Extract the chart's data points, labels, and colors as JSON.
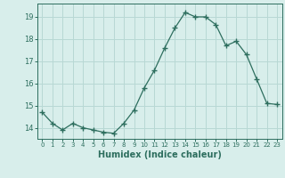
{
  "x": [
    0,
    1,
    2,
    3,
    4,
    5,
    6,
    7,
    8,
    9,
    10,
    11,
    12,
    13,
    14,
    15,
    16,
    17,
    18,
    19,
    20,
    21,
    22,
    23
  ],
  "y": [
    14.7,
    14.2,
    13.9,
    14.2,
    14.0,
    13.9,
    13.8,
    13.75,
    14.2,
    14.8,
    15.8,
    16.6,
    17.6,
    18.5,
    19.2,
    19.0,
    19.0,
    18.65,
    17.7,
    17.9,
    17.3,
    16.2,
    15.1,
    15.05
  ],
  "line_color": "#2d6e5e",
  "marker": "+",
  "marker_size": 4,
  "bg_color": "#d8eeeb",
  "grid_color": "#b8d8d4",
  "tick_color": "#2d6e5e",
  "xlabel": "Humidex (Indice chaleur)",
  "xlabel_fontsize": 7,
  "yticks": [
    14,
    15,
    16,
    17,
    18,
    19
  ],
  "ylim": [
    13.5,
    19.6
  ],
  "xlim": [
    -0.5,
    23.5
  ],
  "xtick_fontsize": 5,
  "ytick_fontsize": 6
}
